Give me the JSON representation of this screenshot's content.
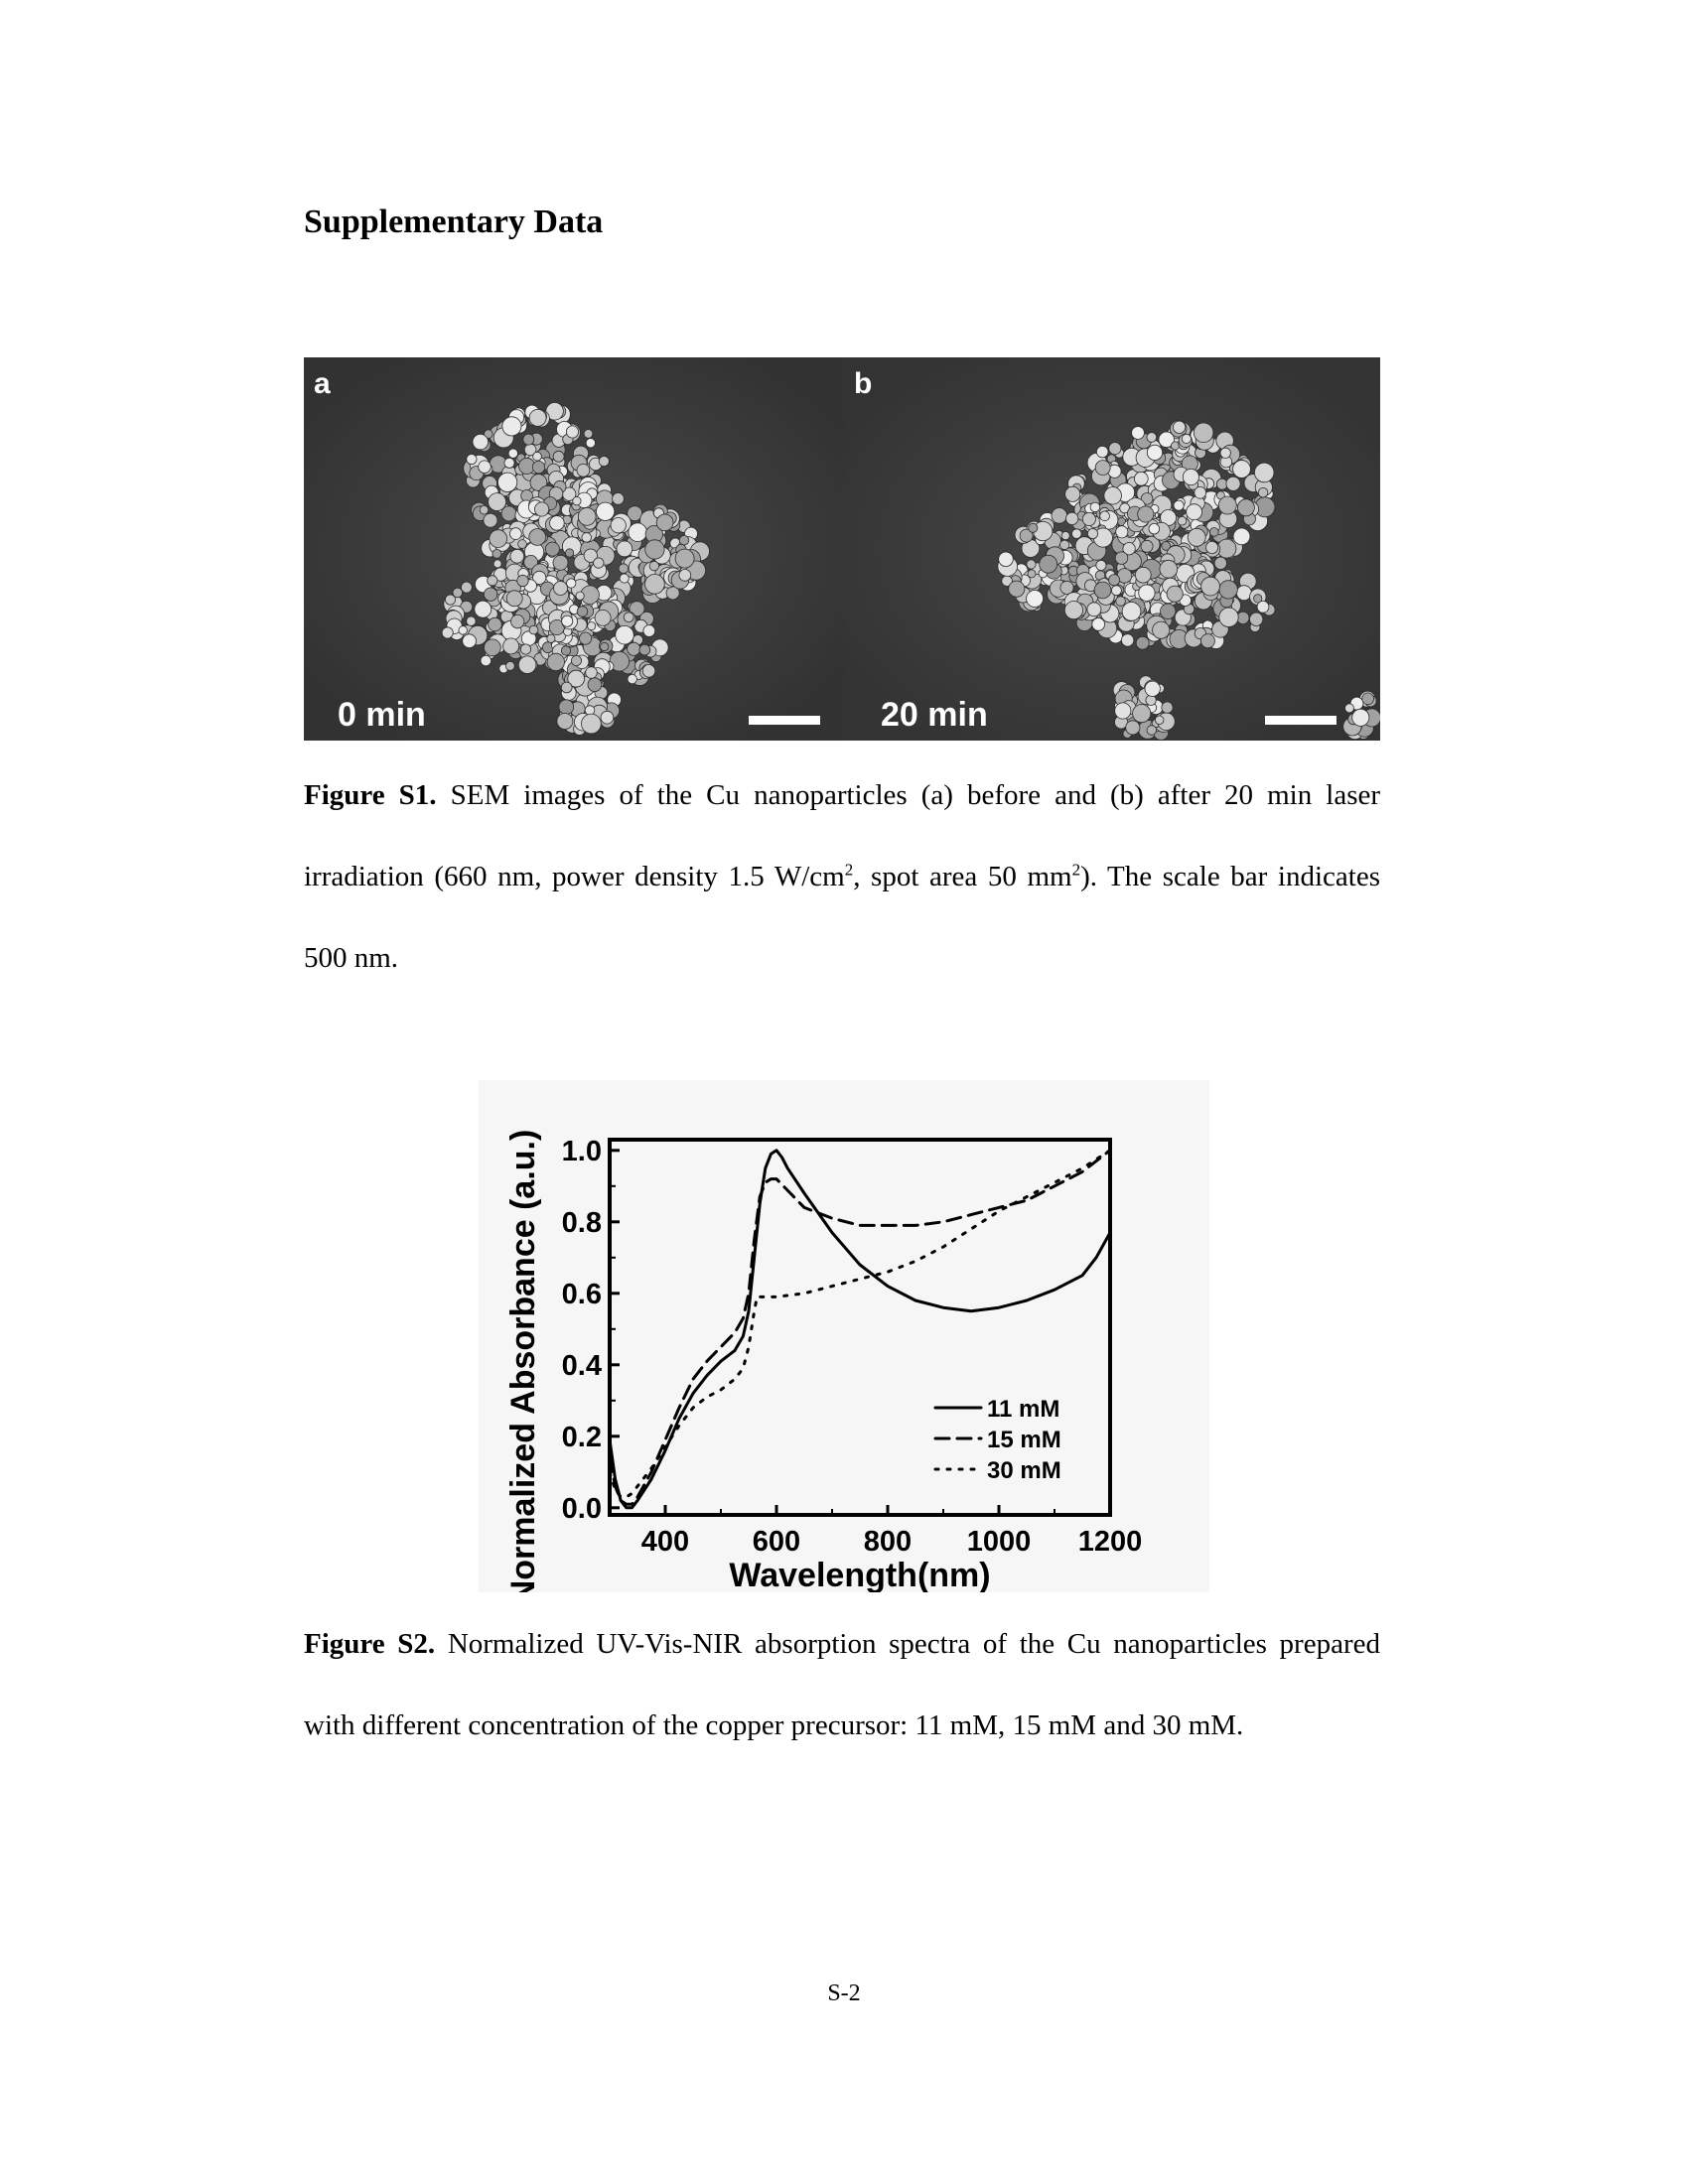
{
  "page": {
    "heading": "Supplementary Data",
    "page_number": "S-2"
  },
  "figure_s1": {
    "panels": [
      {
        "letter": "a",
        "time_label": "0  min"
      },
      {
        "letter": "b",
        "time_label": "20  min"
      }
    ],
    "caption": {
      "label": "Figure S1.",
      "text_1": " SEM images of the Cu nanoparticles (a) before and (b) after 20 min laser irradiation (660 nm, power density 1.5 W/cm",
      "sup_1": "2",
      "text_2": ", spot area 50 mm",
      "sup_2": "2",
      "text_3": "). The scale bar indicates 500 nm."
    }
  },
  "figure_s2": {
    "caption": {
      "label": "Figure S2.",
      "text": " Normalized UV-Vis-NIR absorption spectra of the Cu nanoparticles prepared with different concentration of the copper precursor: 11 mM, 15 mM and 30 mM."
    }
  },
  "chart_data": {
    "type": "line",
    "title": "",
    "xlabel": "Wavelength(nm)",
    "ylabel": "Normalized Absorbance (a.u.)",
    "xlim": [
      300,
      1200
    ],
    "ylim": [
      -0.02,
      1.03
    ],
    "xticks": [
      400,
      600,
      800,
      1000,
      1200
    ],
    "yticks": [
      0.0,
      0.2,
      0.4,
      0.6,
      0.8,
      1.0
    ],
    "xtick_labels": [
      "400",
      "600",
      "800",
      "1000",
      "1200"
    ],
    "ytick_labels": [
      "0.0",
      "0.2",
      "0.4",
      "0.6",
      "0.8",
      "1.0"
    ],
    "legend_position": "bottom-right",
    "grid": false,
    "series": [
      {
        "name": "11 mM",
        "style": "solid",
        "x": [
          300,
          310,
          320,
          330,
          340,
          350,
          375,
          400,
          425,
          450,
          475,
          500,
          525,
          540,
          550,
          560,
          570,
          580,
          590,
          600,
          610,
          620,
          650,
          700,
          750,
          800,
          850,
          900,
          950,
          1000,
          1050,
          1100,
          1150,
          1175,
          1200
        ],
        "y": [
          0.19,
          0.08,
          0.02,
          0.0,
          0.0,
          0.02,
          0.08,
          0.16,
          0.25,
          0.32,
          0.37,
          0.41,
          0.44,
          0.48,
          0.55,
          0.7,
          0.85,
          0.95,
          0.99,
          1.0,
          0.98,
          0.95,
          0.88,
          0.77,
          0.68,
          0.62,
          0.58,
          0.56,
          0.55,
          0.56,
          0.58,
          0.61,
          0.65,
          0.7,
          0.77
        ]
      },
      {
        "name": "15 mM",
        "style": "dashed",
        "x": [
          300,
          310,
          320,
          330,
          340,
          350,
          375,
          400,
          425,
          450,
          475,
          500,
          525,
          540,
          550,
          560,
          570,
          580,
          590,
          600,
          625,
          650,
          700,
          750,
          800,
          850,
          900,
          950,
          1000,
          1050,
          1100,
          1150,
          1200
        ],
        "y": [
          0.14,
          0.06,
          0.02,
          0.01,
          0.01,
          0.03,
          0.1,
          0.19,
          0.28,
          0.36,
          0.41,
          0.45,
          0.49,
          0.53,
          0.6,
          0.75,
          0.87,
          0.91,
          0.92,
          0.92,
          0.88,
          0.84,
          0.81,
          0.79,
          0.79,
          0.79,
          0.8,
          0.82,
          0.84,
          0.86,
          0.9,
          0.94,
          1.0
        ]
      },
      {
        "name": "30 mM",
        "style": "dotted",
        "x": [
          300,
          310,
          320,
          330,
          340,
          350,
          375,
          400,
          425,
          450,
          475,
          500,
          525,
          540,
          550,
          560,
          565,
          570,
          580,
          600,
          650,
          700,
          750,
          800,
          850,
          900,
          950,
          1000,
          1050,
          1100,
          1150,
          1200
        ],
        "y": [
          0.1,
          0.05,
          0.03,
          0.03,
          0.04,
          0.06,
          0.11,
          0.17,
          0.23,
          0.28,
          0.31,
          0.33,
          0.36,
          0.39,
          0.45,
          0.55,
          0.59,
          0.59,
          0.59,
          0.59,
          0.6,
          0.62,
          0.64,
          0.66,
          0.69,
          0.73,
          0.78,
          0.83,
          0.87,
          0.91,
          0.95,
          1.0
        ]
      }
    ]
  }
}
